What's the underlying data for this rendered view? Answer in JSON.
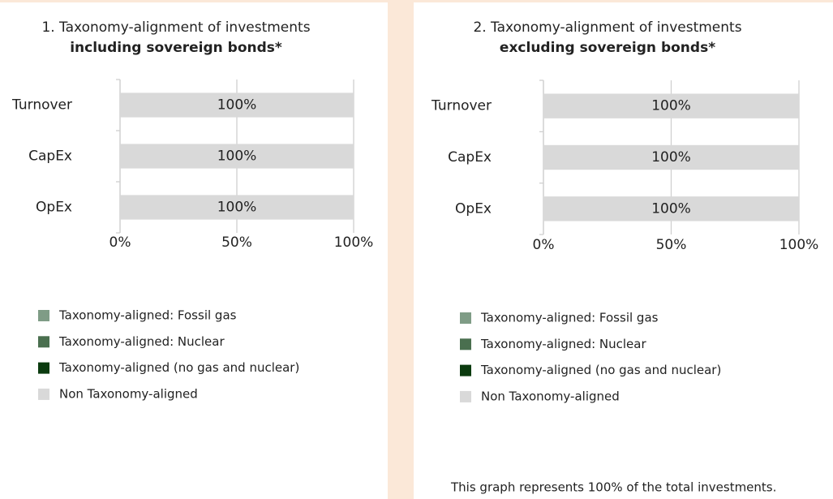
{
  "chart_data": [
    {
      "type": "bar",
      "orientation": "horizontal",
      "stacked": true,
      "grid": true,
      "title": "1. Taxonomy-alignment of investments",
      "subtitle": "including sovereign bonds*",
      "categories": [
        "Turnover",
        "CapEx",
        "OpEx"
      ],
      "series": [
        {
          "name": "Taxonomy-aligned: Fossil gas",
          "color": "#7f9c86",
          "values": [
            0,
            0,
            0
          ]
        },
        {
          "name": "Taxonomy-aligned: Nuclear",
          "color": "#4a6f4f",
          "values": [
            0,
            0,
            0
          ]
        },
        {
          "name": "Taxonomy-aligned (no gas and nuclear)",
          "color": "#0b3b0f",
          "values": [
            0,
            0,
            0
          ]
        },
        {
          "name": "Non Taxonomy-aligned",
          "color": "#d9d9d9",
          "values": [
            100,
            100,
            100
          ],
          "value_labels": [
            "100%",
            "100%",
            "100%"
          ]
        }
      ],
      "xlim": [
        0,
        100
      ],
      "xticks": [
        {
          "value": 0,
          "label": "0%"
        },
        {
          "value": 50,
          "label": "50%"
        },
        {
          "value": 100,
          "label": "100%"
        }
      ]
    },
    {
      "type": "bar",
      "orientation": "horizontal",
      "stacked": true,
      "grid": true,
      "title": "2. Taxonomy-alignment of investments",
      "subtitle": "excluding sovereign bonds*",
      "categories": [
        "Turnover",
        "CapEx",
        "OpEx"
      ],
      "series": [
        {
          "name": "Taxonomy-aligned: Fossil gas",
          "color": "#7f9c86",
          "values": [
            0,
            0,
            0
          ]
        },
        {
          "name": "Taxonomy-aligned: Nuclear",
          "color": "#4a6f4f",
          "values": [
            0,
            0,
            0
          ]
        },
        {
          "name": "Taxonomy-aligned (no gas and nuclear)",
          "color": "#0b3b0f",
          "values": [
            0,
            0,
            0
          ]
        },
        {
          "name": "Non Taxonomy-aligned",
          "color": "#d9d9d9",
          "values": [
            100,
            100,
            100
          ],
          "value_labels": [
            "100%",
            "100%",
            "100%"
          ]
        }
      ],
      "xlim": [
        0,
        100
      ],
      "xticks": [
        {
          "value": 0,
          "label": "0%"
        },
        {
          "value": 50,
          "label": "50%"
        },
        {
          "value": 100,
          "label": "100%"
        }
      ]
    }
  ],
  "footnote": "This graph represents 100% of the total investments."
}
